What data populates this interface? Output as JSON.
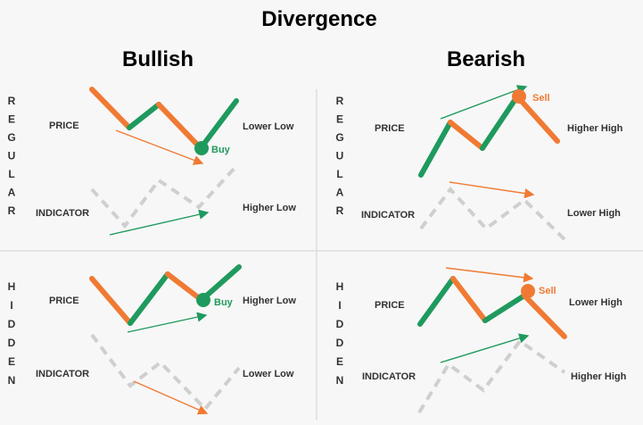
{
  "title": "Divergence",
  "columns": [
    "Bullish",
    "Bearish"
  ],
  "row_labels": [
    "REGULAR",
    "HIDDEN"
  ],
  "colors": {
    "green": "#1f9a5e",
    "orange": "#f07a33",
    "gray": "#cfcfcf",
    "divider": "#dddddd"
  },
  "quadrants": [
    {
      "id": "regular-bullish",
      "price_label": "PRICE",
      "indicator_label": "INDICATOR",
      "price_note": "Lower Low",
      "indicator_note": "Higher Low",
      "signal": "Buy"
    },
    {
      "id": "regular-bearish",
      "price_label": "PRICE",
      "indicator_label": "INDICATOR",
      "price_note": "Higher High",
      "indicator_note": "Lower High",
      "signal": "Sell"
    },
    {
      "id": "hidden-bullish",
      "price_label": "PRICE",
      "indicator_label": "INDICATOR",
      "price_note": "Higher Low",
      "indicator_note": "Lower Low",
      "signal": "Buy"
    },
    {
      "id": "hidden-bearish",
      "price_label": "PRICE",
      "indicator_label": "INDICATOR",
      "price_note": "Lower High",
      "indicator_note": "Higher High",
      "signal": "Sell"
    }
  ]
}
